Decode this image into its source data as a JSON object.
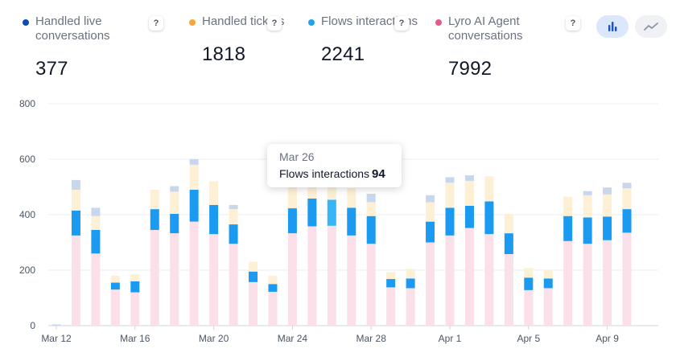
{
  "metrics": [
    {
      "label": "Handled live conversations",
      "value": "377",
      "color": "#0b4fb3"
    },
    {
      "label": "Handled tickets",
      "value": "1818",
      "color": "#f6a73b"
    },
    {
      "label": "Flows interactions",
      "value": "2241",
      "color": "#1fa3f0"
    },
    {
      "label": "Lyro AI Agent conversations",
      "value": "7992",
      "color": "#e6598a"
    }
  ],
  "help_label": "?",
  "tooltip": {
    "date": "Mar 26",
    "series": "Flows interactions",
    "value": "94"
  },
  "chart_data": {
    "type": "bar",
    "stacked": true,
    "ylim": [
      0,
      800
    ],
    "yticks": [
      "0",
      "200",
      "400",
      "600",
      "800"
    ],
    "categories": [
      "Mar 12",
      "Mar 13",
      "Mar 14",
      "Mar 15",
      "Mar 16",
      "Mar 17",
      "Mar 18",
      "Mar 19",
      "Mar 20",
      "Mar 21",
      "Mar 22",
      "Mar 23",
      "Mar 24",
      "Mar 25",
      "Mar 26",
      "Mar 27",
      "Mar 28",
      "Mar 29",
      "Mar 30",
      "Mar 31",
      "Apr 1",
      "Apr 2",
      "Apr 3",
      "Apr 4",
      "Apr 5",
      "Apr 6",
      "Apr 7",
      "Apr 8",
      "Apr 9",
      "Apr 10"
    ],
    "xtick_labels": [
      {
        "index": 0,
        "label": "Mar 12"
      },
      {
        "index": 4,
        "label": "Mar 16"
      },
      {
        "index": 8,
        "label": "Mar 20"
      },
      {
        "index": 12,
        "label": "Mar 24"
      },
      {
        "index": 16,
        "label": "Mar 28"
      },
      {
        "index": 20,
        "label": "Apr 1"
      },
      {
        "index": 24,
        "label": "Apr 5"
      },
      {
        "index": 28,
        "label": "Apr 9"
      }
    ],
    "highlight_index": 14,
    "series": [
      {
        "name": "Lyro AI Agent conversations",
        "color": "#fbe0ea",
        "values": [
          0,
          325,
          260,
          130,
          120,
          345,
          333,
          375,
          330,
          295,
          157,
          122,
          333,
          358,
          360,
          325,
          295,
          138,
          135,
          300,
          325,
          352,
          330,
          258,
          128,
          135,
          305,
          295,
          308,
          335
        ]
      },
      {
        "name": "Flows interactions",
        "color": "#1a9af0",
        "values": [
          0,
          90,
          85,
          25,
          40,
          75,
          70,
          115,
          105,
          70,
          38,
          28,
          90,
          100,
          94,
          100,
          100,
          30,
          35,
          75,
          100,
          80,
          118,
          75,
          45,
          35,
          90,
          95,
          85,
          85
        ]
      },
      {
        "name": "Handled tickets",
        "color": "#fdf0d5",
        "values": [
          0,
          75,
          50,
          25,
          25,
          70,
          80,
          90,
          85,
          55,
          35,
          30,
          90,
          80,
          80,
          70,
          50,
          25,
          35,
          70,
          90,
          90,
          90,
          70,
          35,
          30,
          70,
          80,
          80,
          75
        ]
      },
      {
        "name": "Handled live conversations",
        "color": "#c8d7ee",
        "values": [
          0,
          35,
          30,
          0,
          0,
          0,
          20,
          20,
          0,
          15,
          0,
          0,
          20,
          10,
          10,
          0,
          30,
          0,
          0,
          25,
          20,
          20,
          0,
          0,
          0,
          0,
          0,
          15,
          25,
          20
        ]
      }
    ]
  }
}
